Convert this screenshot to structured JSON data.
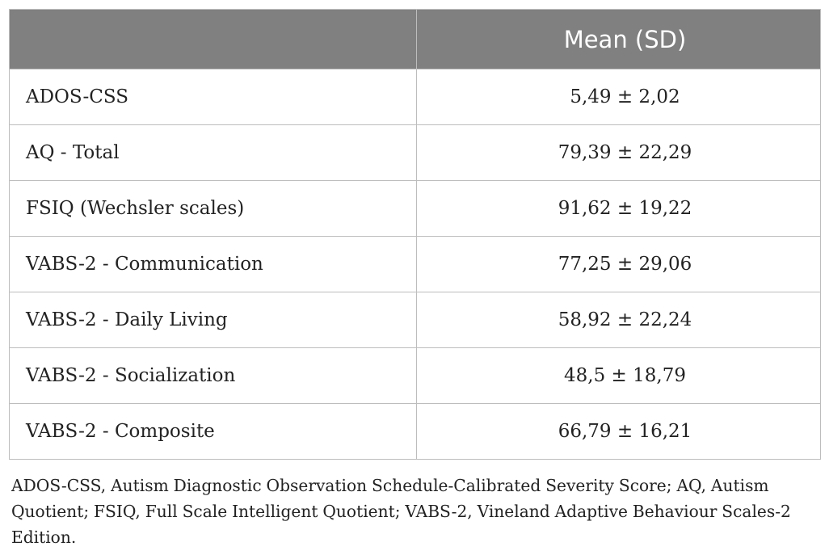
{
  "table": {
    "header": {
      "col1": "",
      "col2": "Mean (SD)"
    },
    "rows": [
      {
        "label": "ADOS-CSS",
        "value": "5,49 ± 2,02"
      },
      {
        "label": "AQ - Total",
        "value": "79,39 ± 22,29"
      },
      {
        "label": "FSIQ (Wechsler scales)",
        "value": "91,62 ± 19,22"
      },
      {
        "label": "VABS-2 - Communication",
        "value": "77,25 ± 29,06"
      },
      {
        "label": "VABS-2 - Daily Living",
        "value": "58,92 ± 22,24"
      },
      {
        "label": "VABS-2 - Socialization",
        "value": "48,5 ± 18,79"
      },
      {
        "label": "VABS-2 - Composite",
        "value": "66,79 ± 16,21"
      }
    ]
  },
  "footnote": "ADOS-CSS, Autism Diagnostic Observation Schedule-Calibrated Severity Score; AQ, Autism Quotient; FSIQ, Full Scale Intelligent Quotient; VABS-2, Vineland Adaptive Behaviour Scales-2 Edition."
}
